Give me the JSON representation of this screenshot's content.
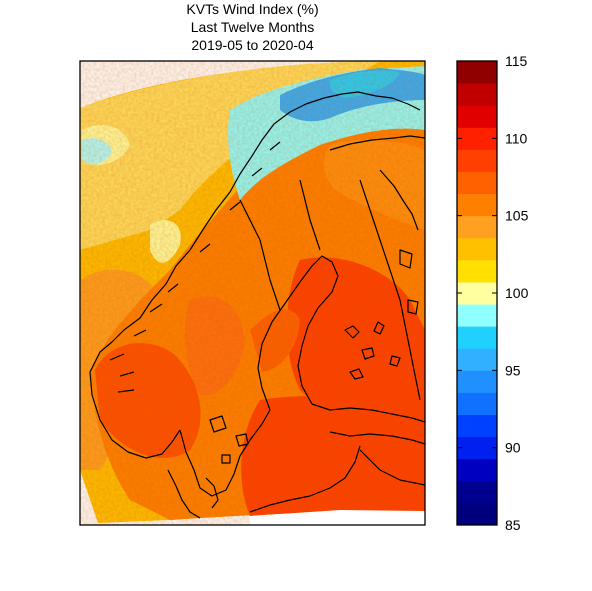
{
  "title": {
    "line1": "KVTs Wind Index (%)",
    "line2": "Last Twelve Months",
    "line3": "2019-05 to 2020-04"
  },
  "colorbar": {
    "min": 85,
    "max": 115,
    "ticks": [
      "85",
      "90",
      "95",
      "100",
      "105",
      "110",
      "115"
    ],
    "tick_values": [
      85,
      90,
      95,
      100,
      105,
      110,
      115
    ],
    "colors": [
      "#00007f",
      "#00008f",
      "#0000c0",
      "#0020f0",
      "#0040ff",
      "#1070ff",
      "#2090ff",
      "#30b0ff",
      "#20d0ff",
      "#90ffff",
      "#ffffa0",
      "#ffe000",
      "#ffc000",
      "#ffa020",
      "#ff8000",
      "#ff6000",
      "#ff4000",
      "#ff2000",
      "#e00000",
      "#c00000",
      "#900000"
    ]
  },
  "map": {
    "region": "Scandinavia and Baltic",
    "palette": {
      "sea_bright": "#ffe000",
      "sea_pale": "#ffff90",
      "land_orange": "#ff8000",
      "land_red": "#ff4000",
      "cyan": "#90ffff",
      "blue": "#30b0ff"
    }
  }
}
